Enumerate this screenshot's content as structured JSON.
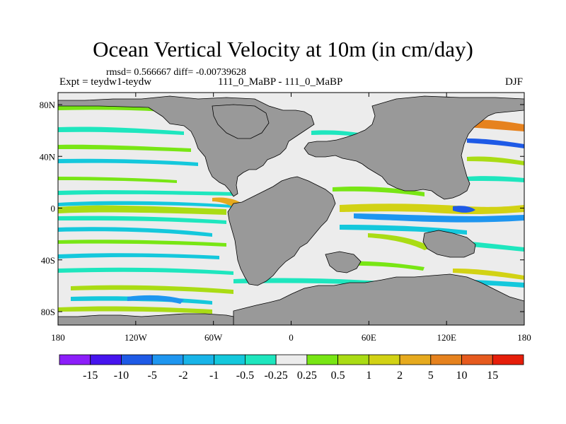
{
  "title": "Ocean Vertical Velocity at 10m (in cm/day)",
  "stats_text": "rmsd= 0.566667 diff= -0.00739628",
  "left_label": "Expt = teydw1-teydw",
  "center_label": "111_0_MaBP - 111_0_MaBP",
  "right_label": "DJF",
  "lat_ticks": [
    "80N",
    "40N",
    "0",
    "40S",
    "80S"
  ],
  "lon_ticks": [
    "180",
    "120W",
    "60W",
    "0",
    "60E",
    "120E",
    "180"
  ],
  "colorbar": {
    "labels": [
      "-15",
      "-10",
      "-5",
      "-2",
      "-1",
      "-0.5",
      "-0.25",
      "0.25",
      "0.5",
      "1",
      "2",
      "5",
      "10",
      "15"
    ],
    "colors": [
      "#8c1efa",
      "#4614ee",
      "#1e5ae6",
      "#1e96f0",
      "#18b4e8",
      "#14c8dc",
      "#1ee6be",
      "#ececec",
      "#78e614",
      "#aadc14",
      "#d2d214",
      "#e6aa1e",
      "#e6821e",
      "#e65a1e",
      "#e61e0a"
    ]
  },
  "colors": {
    "land": "#999999",
    "ocean_neutral": "#ececec"
  }
}
